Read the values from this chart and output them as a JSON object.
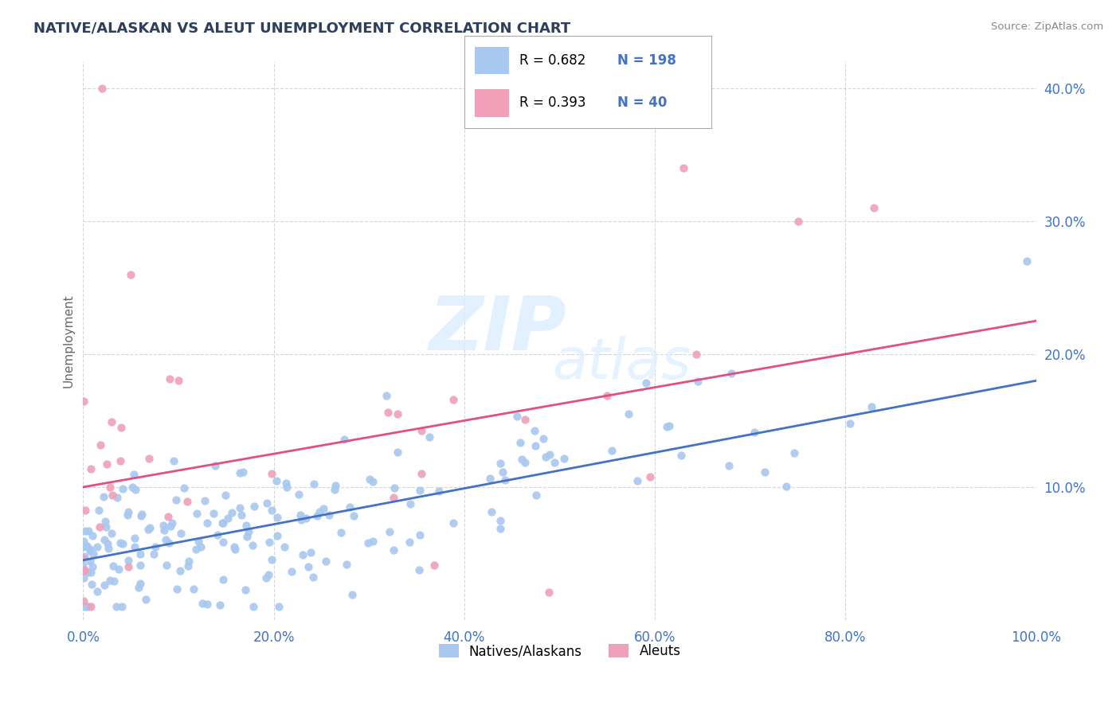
{
  "title": "NATIVE/ALASKAN VS ALEUT UNEMPLOYMENT CORRELATION CHART",
  "source": "Source: ZipAtlas.com",
  "xlabel_vals": [
    0,
    20,
    40,
    60,
    80,
    100
  ],
  "ylabel_vals": [
    10,
    20,
    30,
    40
  ],
  "xlim": [
    0,
    100
  ],
  "ylim": [
    0,
    42
  ],
  "blue_color": "#A8C8F0",
  "pink_color": "#F0A0B8",
  "blue_line_color": "#4472C4",
  "pink_line_color": "#E05080",
  "R_blue": 0.682,
  "N_blue": 198,
  "R_pink": 0.393,
  "N_pink": 40,
  "legend_label_blue": "Natives/Alaskans",
  "legend_label_pink": "Aleuts",
  "ylabel": "Unemployment",
  "background_color": "#FFFFFF",
  "title_color": "#2E3F5C",
  "axis_label_color": "#4472C4",
  "grid_color": "#CCCCCC",
  "blue_trend_x0": 0,
  "blue_trend_y0": 4.5,
  "blue_trend_x1": 100,
  "blue_trend_y1": 18.0,
  "pink_trend_x0": 0,
  "pink_trend_y0": 10.0,
  "pink_trend_x1": 100,
  "pink_trend_y1": 22.5
}
